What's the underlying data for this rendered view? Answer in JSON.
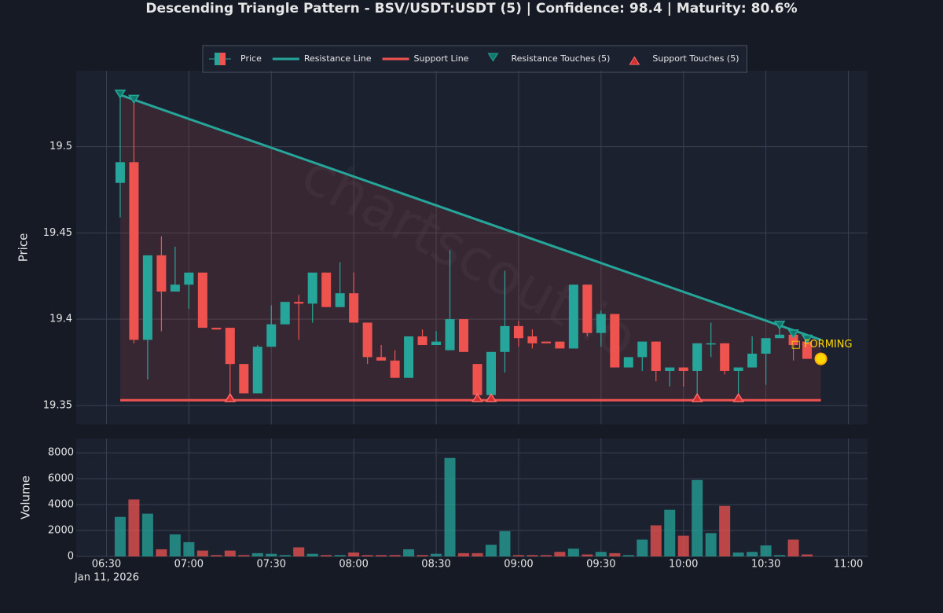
{
  "chart_data": {
    "type": "candlestick",
    "title": "Descending Triangle Pattern - BSV/USDT:USDT (5) | Confidence: 98.4 | Maturity: 80.6%",
    "price_name": "Price",
    "ylabel": "Price",
    "volume_ylabel": "Volume",
    "watermark": "chartscout.io",
    "x_date_label": "Jan 11, 2026",
    "up_color": "#26a69a",
    "down_color": "#ef5350",
    "grid": true,
    "legend_position": "top",
    "x": [
      "2026-01-11 06:35",
      "2026-01-11 06:40",
      "2026-01-11 06:45",
      "2026-01-11 06:50",
      "2026-01-11 06:55",
      "2026-01-11 07:00",
      "2026-01-11 07:05",
      "2026-01-11 07:10",
      "2026-01-11 07:15",
      "2026-01-11 07:20",
      "2026-01-11 07:25",
      "2026-01-11 07:30",
      "2026-01-11 07:35",
      "2026-01-11 07:40",
      "2026-01-11 07:45",
      "2026-01-11 07:50",
      "2026-01-11 07:55",
      "2026-01-11 08:00",
      "2026-01-11 08:05",
      "2026-01-11 08:10",
      "2026-01-11 08:15",
      "2026-01-11 08:20",
      "2026-01-11 08:25",
      "2026-01-11 08:30",
      "2026-01-11 08:35",
      "2026-01-11 08:40",
      "2026-01-11 08:45",
      "2026-01-11 08:50",
      "2026-01-11 08:55",
      "2026-01-11 09:00",
      "2026-01-11 09:05",
      "2026-01-11 09:10",
      "2026-01-11 09:15",
      "2026-01-11 09:20",
      "2026-01-11 09:25",
      "2026-01-11 09:30",
      "2026-01-11 09:35",
      "2026-01-11 09:40",
      "2026-01-11 09:45",
      "2026-01-11 09:50",
      "2026-01-11 09:55",
      "2026-01-11 10:00",
      "2026-01-11 10:05",
      "2026-01-11 10:10",
      "2026-01-11 10:15",
      "2026-01-11 10:20",
      "2026-01-11 10:25",
      "2026-01-11 10:30",
      "2026-01-11 10:35",
      "2026-01-11 10:40",
      "2026-01-11 10:45"
    ],
    "open": [
      19.479,
      19.491,
      19.388,
      19.437,
      19.416,
      19.42,
      19.427,
      19.395,
      19.395,
      19.374,
      19.357,
      19.384,
      19.397,
      19.41,
      19.409,
      19.427,
      19.407,
      19.415,
      19.398,
      19.378,
      19.376,
      19.366,
      19.39,
      19.385,
      19.382,
      19.4,
      19.374,
      19.356,
      19.381,
      19.396,
      19.39,
      19.387,
      19.387,
      19.383,
      19.42,
      19.392,
      19.403,
      19.372,
      19.378,
      19.387,
      19.37,
      19.372,
      19.37,
      19.386,
      19.386,
      19.37,
      19.372,
      19.38,
      19.389,
      19.391,
      19.387
    ],
    "high": [
      19.53,
      19.527,
      19.437,
      19.448,
      19.442,
      19.427,
      19.427,
      19.395,
      19.395,
      19.374,
      19.385,
      19.408,
      19.41,
      19.414,
      19.427,
      19.427,
      19.433,
      19.427,
      19.398,
      19.385,
      19.382,
      19.39,
      19.394,
      19.393,
      19.44,
      19.4,
      19.374,
      19.381,
      19.428,
      19.399,
      19.394,
      19.387,
      19.387,
      19.42,
      19.42,
      19.405,
      19.403,
      19.378,
      19.387,
      19.387,
      19.372,
      19.372,
      19.386,
      19.398,
      19.386,
      19.372,
      19.39,
      19.389,
      19.397,
      19.393,
      19.389
    ],
    "low": [
      19.459,
      19.386,
      19.365,
      19.393,
      19.416,
      19.406,
      19.395,
      19.394,
      19.355,
      19.357,
      19.357,
      19.384,
      19.397,
      19.388,
      19.398,
      19.407,
      19.407,
      19.398,
      19.374,
      19.376,
      19.366,
      19.366,
      19.385,
      19.385,
      19.382,
      19.381,
      19.356,
      19.356,
      19.369,
      19.384,
      19.383,
      19.386,
      19.383,
      19.383,
      19.39,
      19.384,
      19.372,
      19.372,
      19.37,
      19.364,
      19.361,
      19.361,
      19.355,
      19.378,
      19.368,
      19.357,
      19.372,
      19.362,
      19.389,
      19.376,
      19.377
    ],
    "close": [
      19.491,
      19.388,
      19.437,
      19.416,
      19.42,
      19.427,
      19.395,
      19.394,
      19.374,
      19.357,
      19.384,
      19.397,
      19.41,
      19.409,
      19.427,
      19.407,
      19.415,
      19.398,
      19.378,
      19.376,
      19.366,
      19.39,
      19.385,
      19.387,
      19.4,
      19.381,
      19.356,
      19.381,
      19.396,
      19.389,
      19.386,
      19.386,
      19.383,
      19.42,
      19.392,
      19.403,
      19.372,
      19.378,
      19.387,
      19.37,
      19.372,
      19.37,
      19.386,
      19.386,
      19.37,
      19.372,
      19.38,
      19.389,
      19.391,
      19.385,
      19.377
    ],
    "volume": [
      3050,
      4400,
      3300,
      550,
      1700,
      1100,
      450,
      100,
      450,
      100,
      250,
      200,
      100,
      700,
      200,
      100,
      100,
      300,
      100,
      100,
      100,
      550,
      100,
      200,
      7600,
      250,
      250,
      900,
      1950,
      100,
      100,
      100,
      350,
      600,
      150,
      350,
      250,
      100,
      1300,
      2400,
      3600,
      1600,
      5900,
      1800,
      3900,
      300,
      350,
      850,
      100,
      1300,
      150
    ],
    "ylim": [
      19.339,
      19.544
    ],
    "yticks": [
      19.35,
      19.4,
      19.45,
      19.5
    ],
    "volume_ylim": [
      0,
      9100
    ],
    "volume_yticks": [
      0,
      2000,
      4000,
      6000,
      8000
    ],
    "xlim": [
      "2026-01-11 06:19",
      "2026-01-11 11:07"
    ],
    "xticks": [
      {
        "value": "2026-01-11 06:30",
        "label": "06:30"
      },
      {
        "value": "2026-01-11 07:00",
        "label": "07:00"
      },
      {
        "value": "2026-01-11 07:30",
        "label": "07:30"
      },
      {
        "value": "2026-01-11 08:00",
        "label": "08:00"
      },
      {
        "value": "2026-01-11 08:30",
        "label": "08:30"
      },
      {
        "value": "2026-01-11 09:00",
        "label": "09:00"
      },
      {
        "value": "2026-01-11 09:30",
        "label": "09:30"
      },
      {
        "value": "2026-01-11 10:00",
        "label": "10:00"
      },
      {
        "value": "2026-01-11 10:30",
        "label": "10:30"
      },
      {
        "value": "2026-01-11 11:00",
        "label": "11:00"
      }
    ],
    "resistance": {
      "name": "Resistance Line",
      "color": "#26a69a",
      "x": [
        "2026-01-11 06:35",
        "2026-01-11 10:50"
      ],
      "values": [
        19.53,
        19.388
      ]
    },
    "support": {
      "name": "Support Line",
      "color": "#ef5350",
      "x": [
        "2026-01-11 06:35",
        "2026-01-11 10:50"
      ],
      "values": [
        19.353,
        19.353
      ]
    },
    "resistance_touches": {
      "name": "Resistance Touches (5)",
      "color": "#0f7a6c",
      "x": [
        "2026-01-11 06:35",
        "2026-01-11 06:40",
        "2026-01-11 10:35",
        "2026-01-11 10:40",
        "2026-01-11 10:45"
      ],
      "values": [
        19.53,
        19.527,
        19.396,
        19.391,
        19.388
      ]
    },
    "support_touches": {
      "name": "Support Touches (5)",
      "color": "#d32f2f",
      "x": [
        "2026-01-11 07:15",
        "2026-01-11 08:45",
        "2026-01-11 08:50",
        "2026-01-11 10:05",
        "2026-01-11 10:20"
      ],
      "values": [
        19.355,
        19.355,
        19.355,
        19.355,
        19.355
      ]
    },
    "forming": {
      "label": "□ FORMING",
      "color": "#ffd700",
      "x": "2026-01-11 10:50",
      "value": 19.377
    }
  }
}
